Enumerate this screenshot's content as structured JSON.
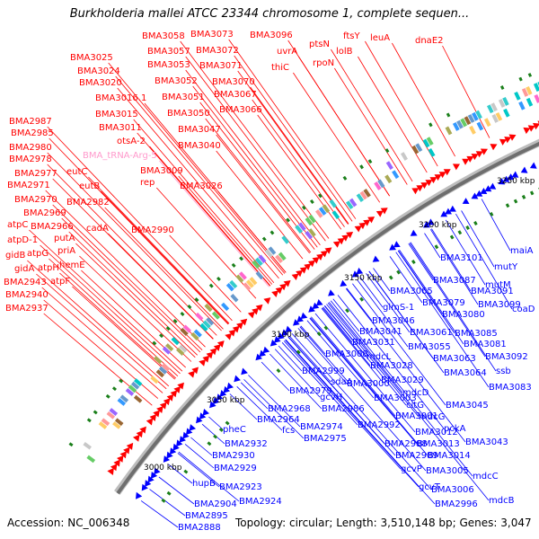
{
  "title": "Burkholderia mallei ATCC 23344 chromosome 1, complete sequen...",
  "footer": {
    "accession": "Accession: NC_006348",
    "topology": "Topology: circular; Length: 3,510,148 bp; Genes: 3,047"
  },
  "colors": {
    "forward_gene": "#ff0000",
    "reverse_gene": "#0000ff",
    "trna_label": "#ff99cc",
    "backbone": "#888888",
    "tick_dash": "#1a7f1a"
  },
  "kbp_ticks": [
    "3250 kbp",
    "3200 kbp",
    "3150 kbp",
    "3100 kbp",
    "3050 kbp",
    "3000 kbp"
  ],
  "red_labels": [
    "BMA3025",
    "BMA3024",
    "BMA3020",
    "BMA3016.1",
    "BMA3015",
    "BMA3011",
    "BMA2987",
    "BMA2985",
    "BMA2980",
    "BMA2978",
    "BMA2977",
    "BMA2971",
    "BMA2970",
    "BMA2969",
    "atpC",
    "BMA2966",
    "atpD-1",
    "atpG",
    "gidB",
    "gidA",
    "atpH",
    "atpF",
    "BMA2943",
    "BMA2940",
    "BMA2937",
    "BMA3058",
    "BMA3073",
    "BMA3057",
    "BMA3072",
    "BMA3053",
    "BMA3071",
    "BMA3052",
    "BMA3070",
    "BMA3051",
    "BMA3067",
    "BMA3050",
    "BMA3066",
    "BMA3047",
    "BMA3040",
    "BMA3026",
    "BMA3009",
    "rep",
    "otsA-2",
    "eutC",
    "eutB",
    "BMA2982",
    "cadA",
    "BMA2990",
    "putA",
    "priA",
    "hemE",
    "BMA3096",
    "uvrA",
    "thiC",
    "ptsN",
    "rpoN",
    "ftsY",
    "lolB",
    "leuA",
    "dnaE2"
  ],
  "pink_labels": [
    "BMA_tRNA-Arg-5"
  ],
  "blue_labels": [
    "maiA",
    "mutY",
    "mutM",
    "coaD",
    "BMA3101",
    "BMA3087",
    "BMA3091",
    "BMA3099",
    "BMA3079",
    "BMA3080",
    "BMA3065",
    "glmS-1",
    "BMA3046",
    "BMA3041",
    "BMA3061",
    "BMA3085",
    "BMA3055",
    "BMA3081",
    "BMA3031",
    "BMA3063",
    "BMA3092",
    "BMA3008",
    "mdcL",
    "BMA3064",
    "ssb",
    "BMA3028",
    "BMA3083",
    "BMA2999",
    "sdaA",
    "BMA3029",
    "BMA2979",
    "BMA3000",
    "gcvH",
    "mdcD",
    "BMA3003",
    "citG",
    "BMA3045",
    "BMA2968",
    "BMA2986",
    "BMA3001",
    "mdcG",
    "BMA2964",
    "BMA2974",
    "BMA2992",
    "BMA3012",
    "pckA",
    "pheC",
    "fcs",
    "BMA2975",
    "BMA3013",
    "BMA3043",
    "BMA2932",
    "BMA2988",
    "BMA3014",
    "BMA2930",
    "BMA2989",
    "BMA2929",
    "gcvP",
    "BMA3005",
    "mdcC",
    "hupB",
    "BMA2923",
    "gcvT",
    "BMA3006",
    "mdcB",
    "BMA2924",
    "BMA2996",
    "BMA2904",
    "BMA2895",
    "BMA2888"
  ]
}
